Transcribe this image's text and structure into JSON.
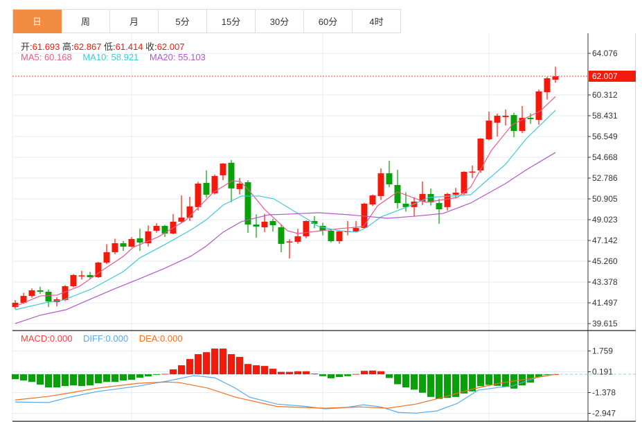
{
  "tabs": [
    {
      "label": "日",
      "active": true
    },
    {
      "label": "周",
      "active": false
    },
    {
      "label": "月",
      "active": false
    },
    {
      "label": "5分",
      "active": false
    },
    {
      "label": "15分",
      "active": false
    },
    {
      "label": "30分",
      "active": false
    },
    {
      "label": "60分",
      "active": false
    },
    {
      "label": "4时",
      "active": false
    }
  ],
  "ohlc_info": {
    "open_label": "开:",
    "open": "61.693",
    "high_label": "高:",
    "high": "62.867",
    "low_label": "低:",
    "low": "61.414",
    "close_label": "收:",
    "close": "62.007"
  },
  "ma_info": {
    "ma5": "MA5: 60.168",
    "ma10": "MA10: 58.921",
    "ma20": "MA20: 55.103"
  },
  "macd_info": {
    "macd": "MACD:0.000",
    "diff": "DIFF:0.000",
    "dea": "DEA:0.000"
  },
  "colors": {
    "up": "#f21b0b",
    "down": "#09a00a",
    "ma5": "#e8588a",
    "ma10": "#3ec8dc",
    "ma20": "#b455c8",
    "diff": "#55aaee",
    "dea": "#f07020",
    "active_tab": "#f28c40"
  },
  "chart_data": [
    {
      "type": "candlestick",
      "title": "",
      "y_ticks": [
        "64.076",
        "62.007",
        "60.312",
        "58.431",
        "56.549",
        "54.668",
        "52.786",
        "50.905",
        "49.023",
        "47.142",
        "45.260",
        "43.378",
        "41.497",
        "39.615"
      ],
      "ylim": [
        39.615,
        64.076
      ],
      "last_price": "62.007",
      "ohlc": [
        [
          41.12,
          41.75,
          40.94,
          41.5
        ],
        [
          41.5,
          42.4,
          41.4,
          42.12
        ],
        [
          42.12,
          42.8,
          41.95,
          42.63
        ],
        [
          42.63,
          42.95,
          42.3,
          42.5
        ],
        [
          42.5,
          42.7,
          41.12,
          41.62
        ],
        [
          41.56,
          42.0,
          41.18,
          41.81
        ],
        [
          41.75,
          43.1,
          41.65,
          43.0
        ],
        [
          43.0,
          44.1,
          42.9,
          44.01
        ],
        [
          43.95,
          44.4,
          43.6,
          43.98
        ],
        [
          44.01,
          44.3,
          43.7,
          43.82
        ],
        [
          43.82,
          45.2,
          43.75,
          45.14
        ],
        [
          45.14,
          46.8,
          45.0,
          46.08
        ],
        [
          46.08,
          47.3,
          45.9,
          46.89
        ],
        [
          46.89,
          47.1,
          46.2,
          46.58
        ],
        [
          46.58,
          47.45,
          46.5,
          47.27
        ],
        [
          47.33,
          48.2,
          46.2,
          46.95
        ],
        [
          46.89,
          48.5,
          46.6,
          47.96
        ],
        [
          48.02,
          48.7,
          47.85,
          48.46
        ],
        [
          48.46,
          48.55,
          47.45,
          47.77
        ],
        [
          47.77,
          49.53,
          47.7,
          48.84
        ],
        [
          48.84,
          51.22,
          48.7,
          49.21
        ],
        [
          49.21,
          51.1,
          48.9,
          50.22
        ],
        [
          50.16,
          52.45,
          49.85,
          52.29
        ],
        [
          52.35,
          53.48,
          51.0,
          51.28
        ],
        [
          51.41,
          53.1,
          51.3,
          52.97
        ],
        [
          53.04,
          54.15,
          52.6,
          54.1
        ],
        [
          54.17,
          54.42,
          50.6,
          51.85
        ],
        [
          51.79,
          52.8,
          51.3,
          52.29
        ],
        [
          52.41,
          52.6,
          47.83,
          48.58
        ],
        [
          48.58,
          49.5,
          47.39,
          48.4
        ],
        [
          48.33,
          49.55,
          47.9,
          48.84
        ],
        [
          48.9,
          49.1,
          47.95,
          48.52
        ],
        [
          48.33,
          48.6,
          46.08,
          46.83
        ],
        [
          47.02,
          47.25,
          45.51,
          47.05
        ],
        [
          47.02,
          48.2,
          46.85,
          47.52
        ],
        [
          47.52,
          48.95,
          47.35,
          48.9
        ],
        [
          48.9,
          49.35,
          48.25,
          48.65
        ],
        [
          48.46,
          48.75,
          47.6,
          48.02
        ],
        [
          48.02,
          48.15,
          46.95,
          47.08
        ],
        [
          47.08,
          48.0,
          46.85,
          47.96
        ],
        [
          47.96,
          48.9,
          47.6,
          47.99
        ],
        [
          47.96,
          48.9,
          47.9,
          48.27
        ],
        [
          48.27,
          50.55,
          48.2,
          50.47
        ],
        [
          50.4,
          51.3,
          50.25,
          51.22
        ],
        [
          51.16,
          53.67,
          50.8,
          53.22
        ],
        [
          53.22,
          54.36,
          51.95,
          52.22
        ],
        [
          52.16,
          53.54,
          50.03,
          50.53
        ],
        [
          50.47,
          51.5,
          49.75,
          50.16
        ],
        [
          50.16,
          51.05,
          49.34,
          50.66
        ],
        [
          50.66,
          52.48,
          50.35,
          51.35
        ],
        [
          51.35,
          51.85,
          50.3,
          50.59
        ],
        [
          50.53,
          50.9,
          48.65,
          49.96
        ],
        [
          50.16,
          51.45,
          49.85,
          51.35
        ],
        [
          51.28,
          51.9,
          50.95,
          51.47
        ],
        [
          51.41,
          53.4,
          51.25,
          53.35
        ],
        [
          53.35,
          53.92,
          52.8,
          53.38
        ],
        [
          53.48,
          56.4,
          53.25,
          56.36
        ],
        [
          56.3,
          58.81,
          56.2,
          57.99
        ],
        [
          57.8,
          58.62,
          56.55,
          58.43
        ],
        [
          58.31,
          58.99,
          57.55,
          58.43
        ],
        [
          58.49,
          58.7,
          56.49,
          57.05
        ],
        [
          57.05,
          59.31,
          56.85,
          58.24
        ],
        [
          58.24,
          58.65,
          57.7,
          58.12
        ],
        [
          58.05,
          60.8,
          57.62,
          60.63
        ],
        [
          60.56,
          61.95,
          59.9,
          61.82
        ],
        [
          61.693,
          62.867,
          61.414,
          62.007
        ]
      ],
      "ma_series": [
        {
          "name": "MA5",
          "points": [
            [
              0,
              41.18
            ],
            [
              3,
              42.12
            ],
            [
              5,
              42.19
            ],
            [
              7.75,
              43.0
            ],
            [
              10.5,
              44.45
            ],
            [
              13,
              45.7
            ],
            [
              14.2,
              46.52
            ],
            [
              17.2,
              47.46
            ],
            [
              20.5,
              48.96
            ],
            [
              23.8,
              51.47
            ],
            [
              26.1,
              52.54
            ],
            [
              27.1,
              52.47
            ],
            [
              28,
              51.79
            ],
            [
              30,
              49.96
            ],
            [
              32.75,
              48.02
            ],
            [
              34,
              47.77
            ],
            [
              39,
              48.21
            ],
            [
              41.9,
              48.4
            ],
            [
              43.6,
              50.28
            ],
            [
              46,
              51.54
            ],
            [
              49.4,
              50.59
            ],
            [
              53.2,
              51.03
            ],
            [
              54.8,
              51.97
            ],
            [
              57.3,
              55.3
            ],
            [
              59.8,
              57.62
            ],
            [
              63.2,
              58.87
            ],
            [
              65,
              60.168
            ]
          ]
        },
        {
          "name": "MA10",
          "points": [
            [
              0,
              40.87
            ],
            [
              3.6,
              41.5
            ],
            [
              5.8,
              41.75
            ],
            [
              9.2,
              42.75
            ],
            [
              13,
              44.32
            ],
            [
              15,
              45.57
            ],
            [
              18,
              46.77
            ],
            [
              21.1,
              48.08
            ],
            [
              23,
              49.02
            ],
            [
              25,
              50.34
            ],
            [
              27.2,
              51.16
            ],
            [
              29.4,
              51.16
            ],
            [
              31.1,
              50.91
            ],
            [
              32.75,
              50.16
            ],
            [
              35.25,
              49.02
            ],
            [
              36.5,
              48.4
            ],
            [
              39,
              48.02
            ],
            [
              41.1,
              47.89
            ],
            [
              42.3,
              48.33
            ],
            [
              44,
              49.27
            ],
            [
              47.3,
              50.22
            ],
            [
              49.8,
              51.03
            ],
            [
              54.8,
              51.28
            ],
            [
              56.5,
              52.41
            ],
            [
              59,
              54.04
            ],
            [
              61.5,
              56.36
            ],
            [
              65,
              58.921
            ]
          ]
        },
        {
          "name": "MA20",
          "points": [
            [
              0,
              39.62
            ],
            [
              3,
              40.37
            ],
            [
              6.1,
              40.87
            ],
            [
              8.8,
              41.75
            ],
            [
              11.9,
              42.75
            ],
            [
              15,
              43.69
            ],
            [
              18,
              44.63
            ],
            [
              21.1,
              45.7
            ],
            [
              23,
              46.64
            ],
            [
              25,
              47.89
            ],
            [
              27.2,
              48.84
            ],
            [
              28.8,
              49.15
            ],
            [
              30.5,
              49.46
            ],
            [
              32.75,
              49.52
            ],
            [
              36.5,
              49.65
            ],
            [
              40.25,
              49.46
            ],
            [
              44.8,
              49.15
            ],
            [
              48.2,
              49.34
            ],
            [
              51.5,
              49.59
            ],
            [
              54.8,
              50.53
            ],
            [
              59,
              52.29
            ],
            [
              61.5,
              53.54
            ],
            [
              65,
              55.103
            ]
          ]
        }
      ]
    },
    {
      "type": "bar+line",
      "title": "MACD",
      "y_ticks": [
        "1.759",
        "0.191",
        "-1.378",
        "-2.947"
      ],
      "ylim": [
        -3.2,
        2.6
      ],
      "histogram": [
        -0.37,
        -0.47,
        -0.58,
        -0.78,
        -0.99,
        -0.99,
        -0.89,
        -0.84,
        -0.89,
        -0.84,
        -0.68,
        -0.58,
        -0.58,
        -0.47,
        -0.42,
        -0.26,
        -0.16,
        -0.05,
        0.03,
        0.37,
        0.68,
        1.15,
        1.52,
        1.67,
        1.94,
        1.94,
        1.52,
        1.31,
        0.78,
        0.68,
        0.63,
        0.42,
        0.18,
        0.18,
        0.23,
        0.23,
        0.05,
        -0.14,
        -0.3,
        -0.21,
        -0.14,
        0.02,
        0.26,
        0.28,
        0.23,
        -0.28,
        -0.75,
        -0.99,
        -1.16,
        -1.39,
        -1.71,
        -1.86,
        -1.78,
        -1.71,
        -1.45,
        -1.29,
        -0.9,
        -0.8,
        -0.87,
        -0.96,
        -1.08,
        -0.84,
        -0.63,
        -0.21,
        -0.03,
        0.0
      ],
      "series": [
        {
          "name": "DIFF",
          "points": [
            [
              0,
              -2.09
            ],
            [
              4,
              -2.13
            ],
            [
              6.5,
              -1.73
            ],
            [
              9.8,
              -1.31
            ],
            [
              14.8,
              -0.89
            ],
            [
              18.2,
              -0.52
            ],
            [
              21.5,
              -0.1
            ],
            [
              24,
              -0.26
            ],
            [
              26.5,
              -1.05
            ],
            [
              28.2,
              -1.73
            ],
            [
              31.5,
              -2.25
            ],
            [
              34.8,
              -2.41
            ],
            [
              37.3,
              -2.61
            ],
            [
              39.8,
              -2.51
            ],
            [
              41.9,
              -2.3
            ],
            [
              44,
              -2.46
            ],
            [
              46.1,
              -2.88
            ],
            [
              48.2,
              -2.93
            ],
            [
              50.7,
              -2.77
            ],
            [
              53.2,
              -2.2
            ],
            [
              55.7,
              -1.2
            ],
            [
              58.2,
              -0.99
            ],
            [
              59.8,
              -0.89
            ],
            [
              61.5,
              -0.52
            ],
            [
              63.2,
              -0.16
            ],
            [
              65,
              0.0
            ]
          ]
        },
        {
          "name": "DEA",
          "points": [
            [
              0,
              -1.94
            ],
            [
              4,
              -1.67
            ],
            [
              6.5,
              -1.41
            ],
            [
              9.8,
              -1.05
            ],
            [
              14.8,
              -0.68
            ],
            [
              18.2,
              -0.58
            ],
            [
              19.8,
              -0.63
            ],
            [
              23.2,
              -1.05
            ],
            [
              26.5,
              -1.73
            ],
            [
              31.5,
              -2.43
            ],
            [
              37.3,
              -2.56
            ],
            [
              41.5,
              -2.46
            ],
            [
              44.8,
              -2.56
            ],
            [
              48.2,
              -2.25
            ],
            [
              51.5,
              -1.73
            ],
            [
              54.8,
              -1.15
            ],
            [
              58.2,
              -0.68
            ],
            [
              61.5,
              -0.37
            ],
            [
              65,
              0.0
            ]
          ]
        }
      ]
    }
  ]
}
